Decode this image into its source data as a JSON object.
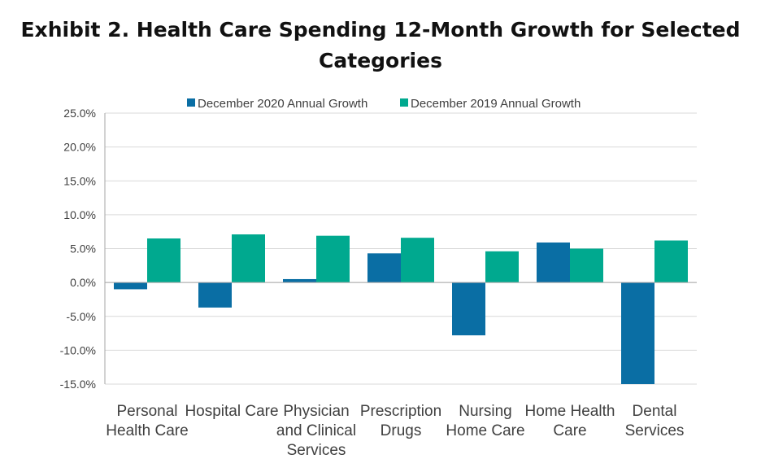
{
  "title_lines": [
    "Exhibit 2. Health Care Spending 12-Month Growth for Selected",
    "Categories"
  ],
  "chart_data": {
    "type": "bar",
    "title": "Exhibit 2. Health Care Spending 12-Month Growth for Selected Categories",
    "categories": [
      [
        "Personal",
        "Health Care"
      ],
      [
        "Hospital Care"
      ],
      [
        "Physician",
        "and Clinical",
        "Services"
      ],
      [
        "Prescription",
        "Drugs"
      ],
      [
        "Nursing",
        "Home Care"
      ],
      [
        "Home Health",
        "Care"
      ],
      [
        "Dental",
        "Services"
      ]
    ],
    "series": [
      {
        "name": "December 2020 Annual Growth",
        "color": "#0a6ea4",
        "values": [
          -1.0,
          -3.7,
          0.5,
          4.3,
          -7.8,
          5.9,
          -15.0
        ]
      },
      {
        "name": "December 2019 Annual Growth",
        "color": "#00a98f",
        "values": [
          6.5,
          7.1,
          6.9,
          6.6,
          4.6,
          5.0,
          6.2
        ]
      }
    ],
    "ylim": [
      -15,
      25
    ],
    "yticks": [
      25,
      20,
      15,
      10,
      5,
      0,
      -5,
      -10,
      -15
    ],
    "ytick_labels": [
      "25.0%",
      "20.0%",
      "15.0%",
      "10.0%",
      "5.0%",
      "0.0%",
      "-5.0%",
      "-10.0%",
      "-15.0%"
    ],
    "grid": true,
    "legend": "top"
  }
}
